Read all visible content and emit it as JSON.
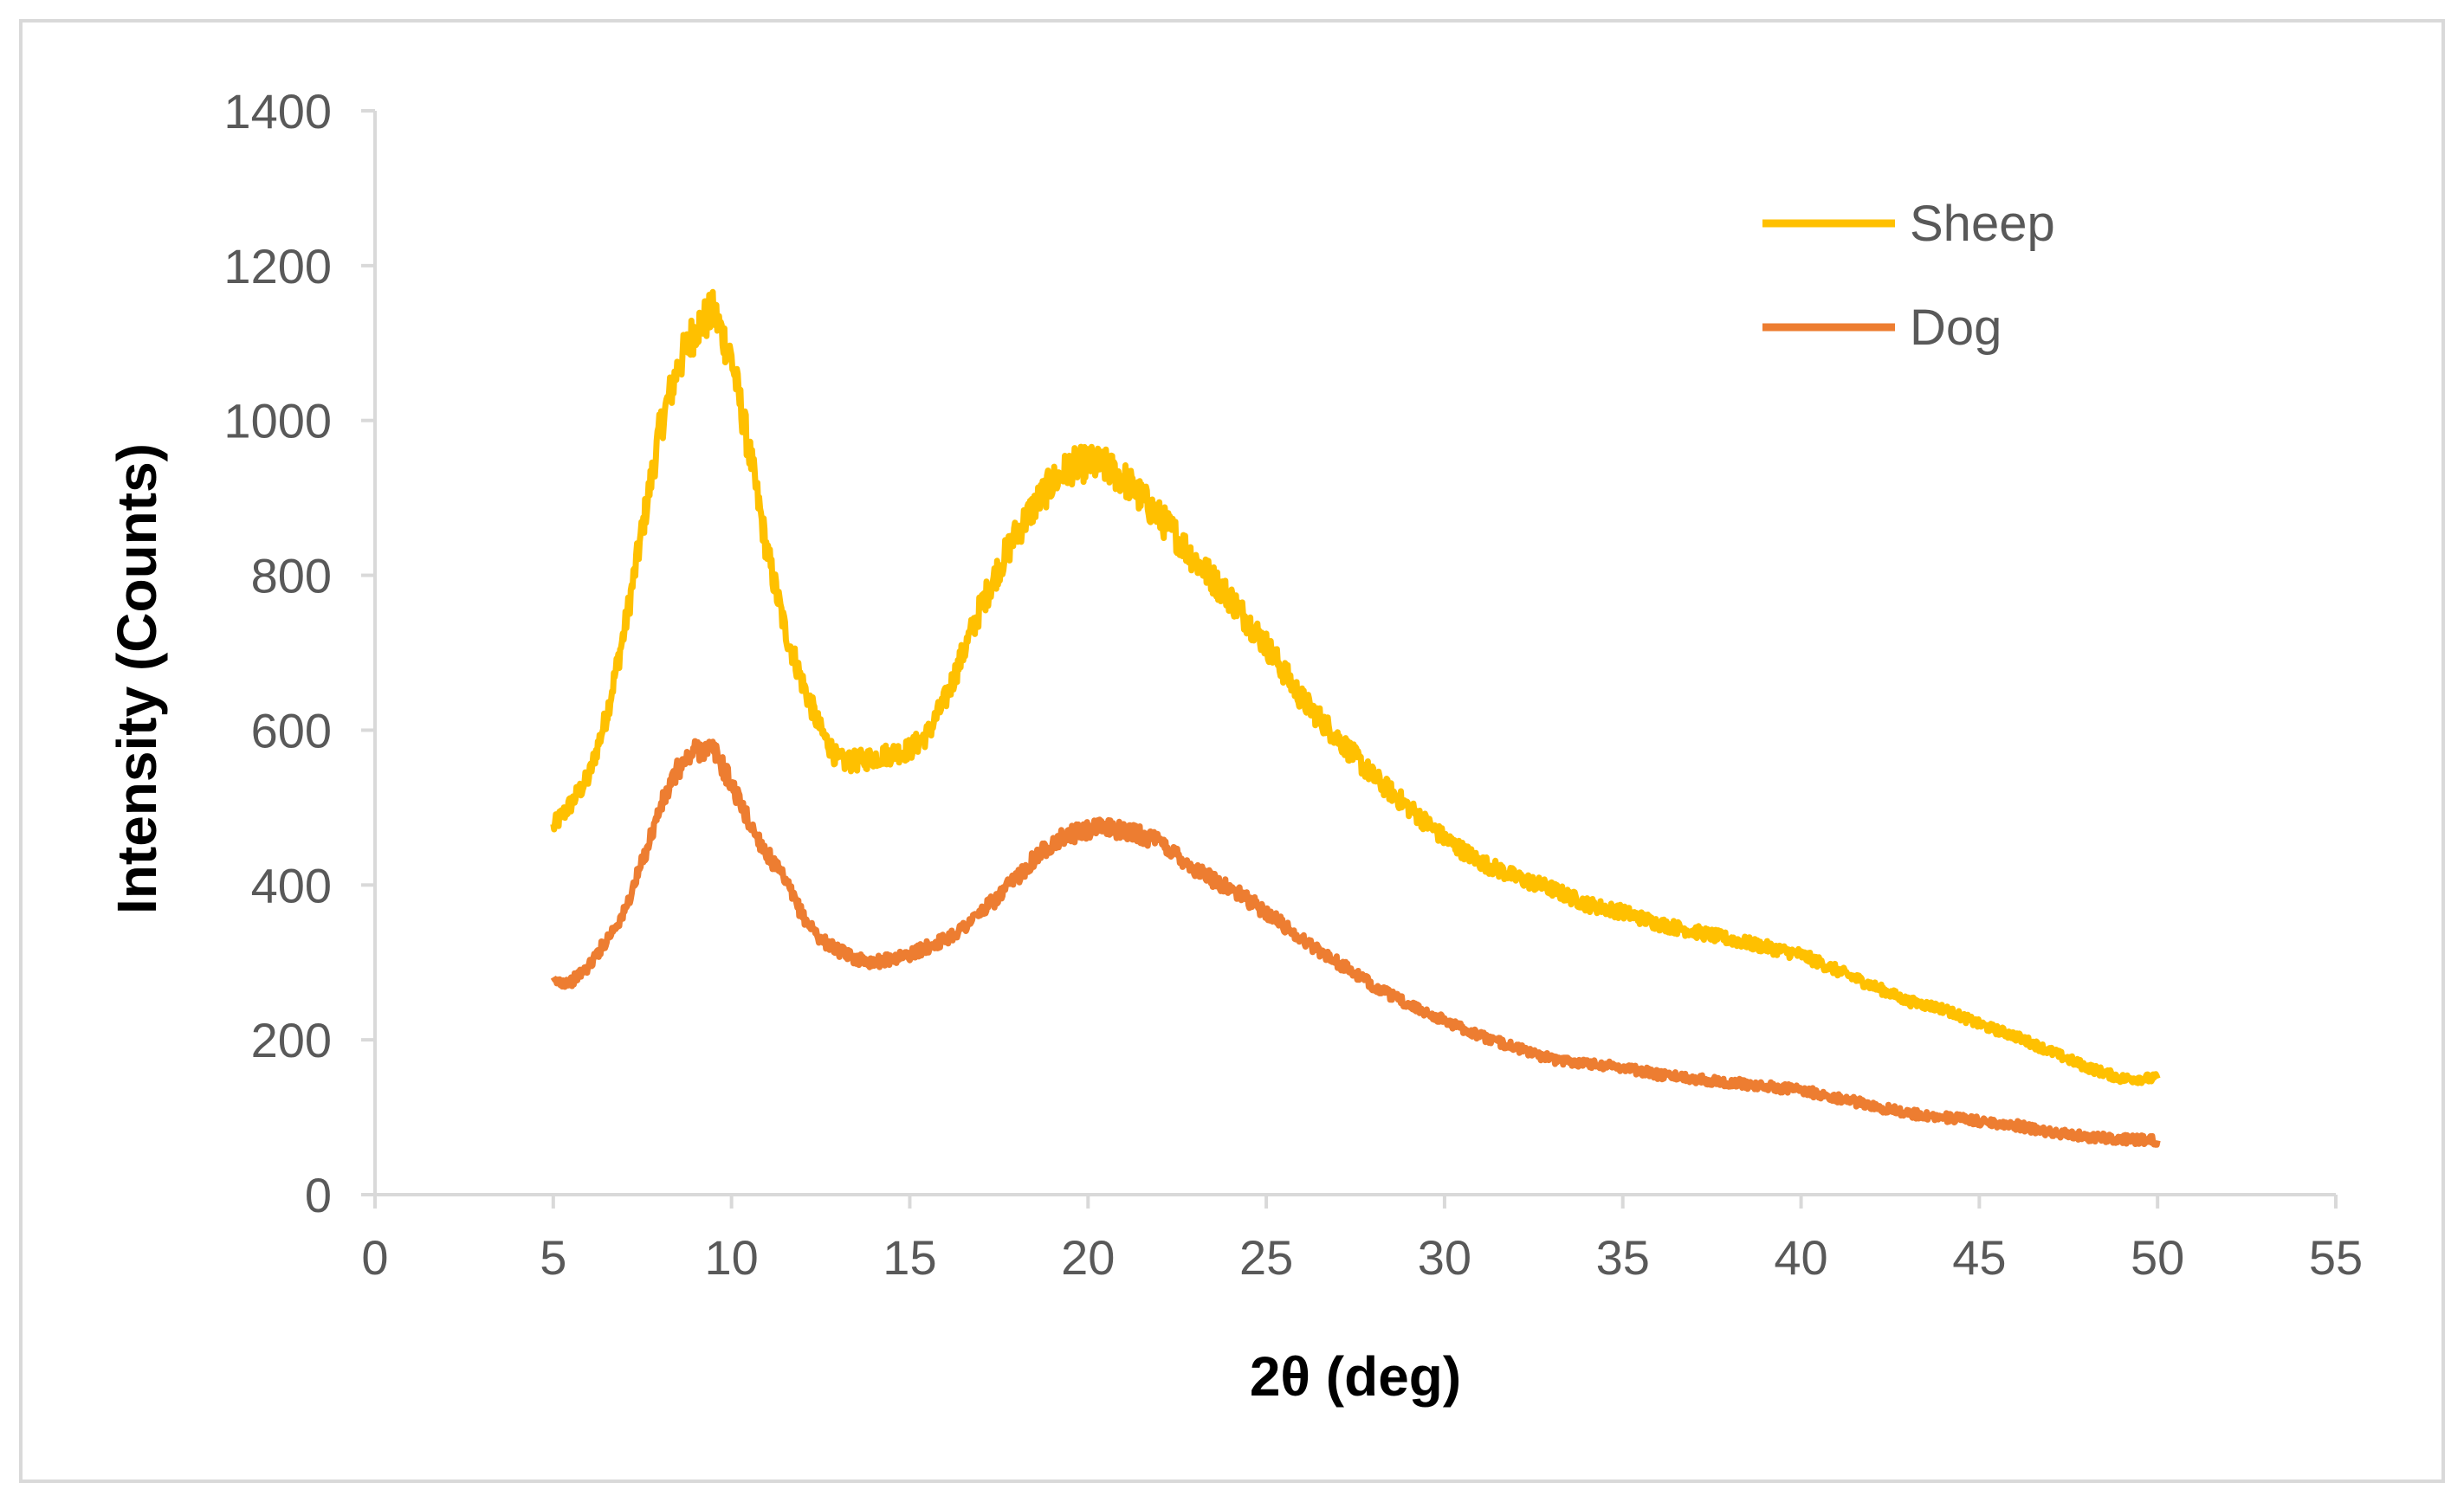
{
  "chart_data": {
    "type": "line",
    "title": "",
    "xlabel": "2θ (deg)",
    "ylabel": "Intensity (Counts)",
    "xlim": [
      0,
      55
    ],
    "ylim": [
      0,
      1400
    ],
    "xticks": [
      "0",
      "5",
      "10",
      "15",
      "20",
      "25",
      "30",
      "35",
      "40",
      "45",
      "50",
      "55"
    ],
    "yticks": [
      "0",
      "200",
      "400",
      "600",
      "800",
      "1000",
      "1200",
      "1400"
    ],
    "grid": false,
    "legend_position": "top-right",
    "series": [
      {
        "name": "Sheep",
        "color": "#ffc000",
        "x": [
          5,
          5.5,
          6,
          6.5,
          7,
          7.5,
          8,
          8.5,
          9,
          9.5,
          10,
          10.5,
          11,
          11.5,
          12,
          12.5,
          13,
          13.5,
          14,
          14.5,
          15,
          15.5,
          16,
          16.5,
          17,
          17.5,
          18,
          18.5,
          19,
          19.5,
          20,
          20.5,
          21,
          21.5,
          22,
          22.5,
          23,
          24,
          25,
          26,
          27,
          28,
          29,
          30,
          31,
          32,
          33,
          34,
          35,
          36,
          37,
          38,
          39,
          40,
          41,
          42,
          43,
          44,
          45,
          46,
          47,
          48,
          49,
          50
        ],
        "y": [
          475,
          505,
          540,
          620,
          730,
          860,
          990,
          1070,
          1120,
          1140,
          1080,
          960,
          830,
          730,
          660,
          600,
          560,
          560,
          565,
          570,
          575,
          595,
          640,
          700,
          760,
          810,
          855,
          890,
          920,
          940,
          945,
          940,
          925,
          900,
          875,
          850,
          820,
          770,
          710,
          640,
          590,
          540,
          500,
          460,
          430,
          410,
          395,
          375,
          365,
          350,
          340,
          330,
          320,
          310,
          290,
          270,
          250,
          240,
          220,
          205,
          185,
          165,
          150,
          150
        ]
      },
      {
        "name": "Dog",
        "color": "#ed7d31",
        "x": [
          5,
          5.5,
          6,
          6.5,
          7,
          7.5,
          8,
          8.5,
          9,
          9.5,
          10,
          10.5,
          11,
          11.5,
          12,
          12.5,
          13,
          13.5,
          14,
          14.5,
          15,
          15.5,
          16,
          16.5,
          17,
          17.5,
          18,
          18.5,
          19,
          19.5,
          20,
          20.5,
          21,
          21.5,
          22,
          22.5,
          23,
          24,
          25,
          26,
          27,
          28,
          29,
          30,
          31,
          32,
          33,
          34,
          35,
          36,
          37,
          38,
          39,
          40,
          41,
          42,
          43,
          44,
          45,
          46,
          47,
          48,
          49,
          50
        ],
        "y": [
          275,
          275,
          295,
          330,
          365,
          430,
          500,
          550,
          575,
          575,
          530,
          480,
          440,
          405,
          360,
          330,
          315,
          305,
          300,
          305,
          310,
          320,
          330,
          345,
          365,
          385,
          410,
          435,
          455,
          465,
          470,
          475,
          470,
          465,
          455,
          440,
          420,
          395,
          365,
          330,
          300,
          270,
          245,
          225,
          205,
          190,
          175,
          170,
          165,
          155,
          150,
          145,
          140,
          135,
          125,
          115,
          105,
          100,
          95,
          90,
          80,
          75,
          72,
          70
        ]
      }
    ]
  }
}
